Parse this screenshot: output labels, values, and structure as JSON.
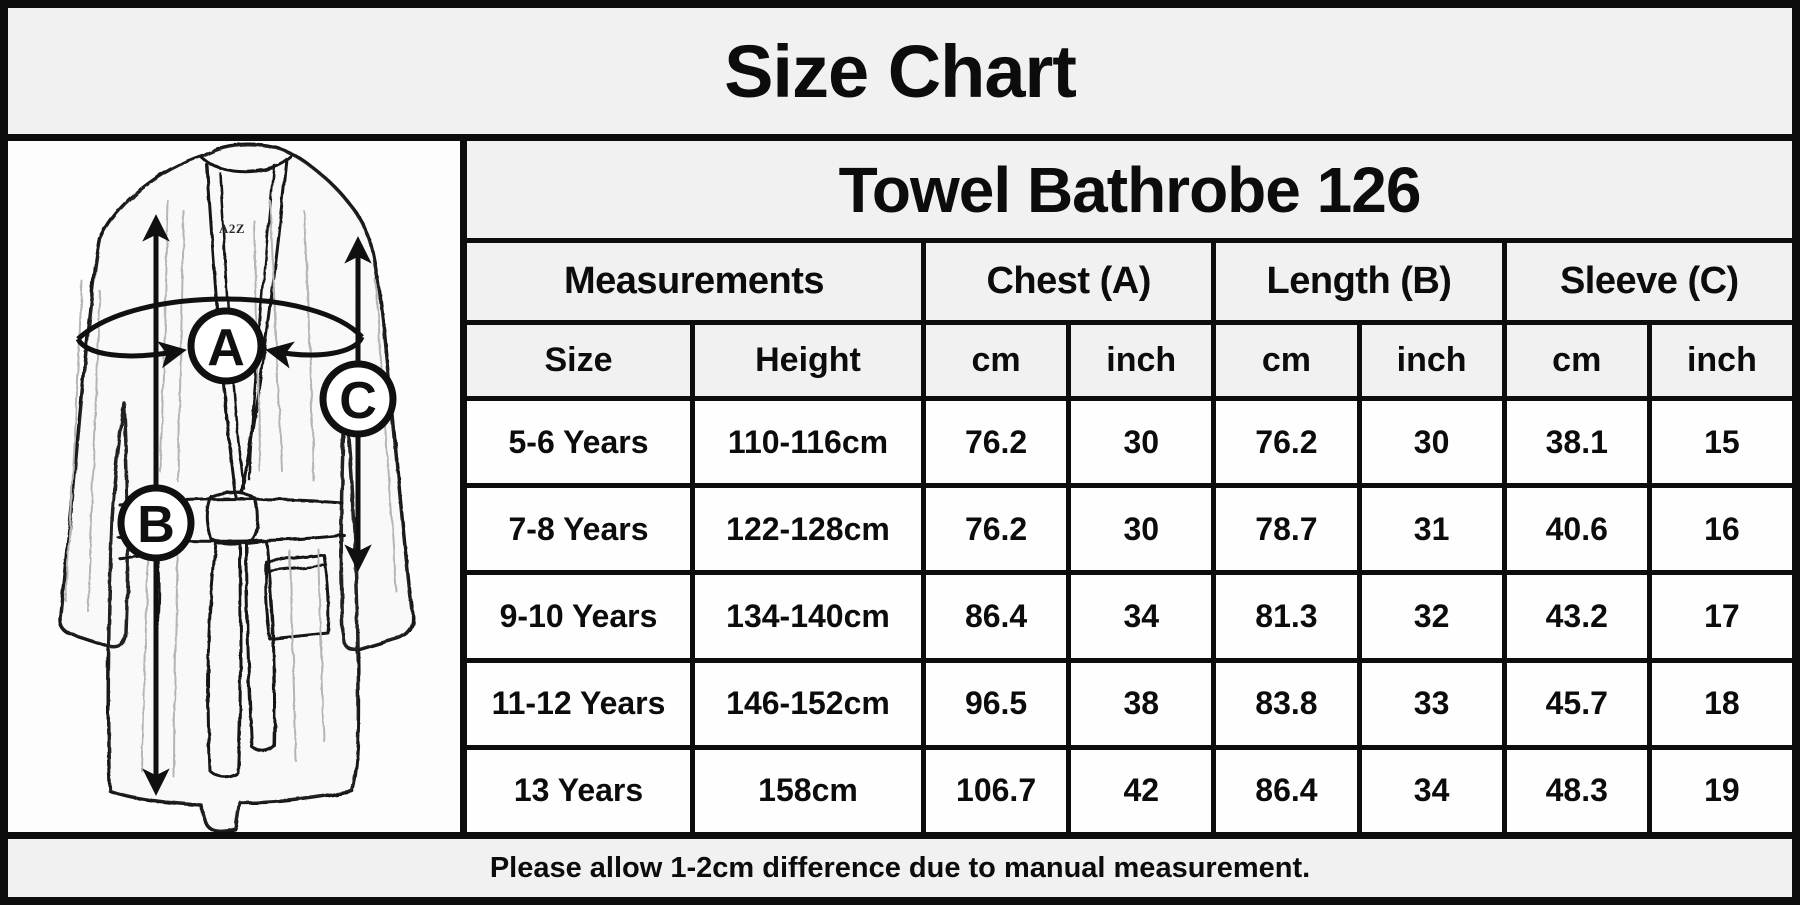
{
  "title": "Size Chart",
  "product_title": "Towel Bathrobe 126",
  "diagram": {
    "brand_label": "A2Z",
    "chest_label": "A",
    "length_label": "B",
    "sleeve_label": "C"
  },
  "chart_data": {
    "type": "table",
    "title": "Size Chart",
    "subtitle": "Towel Bathrobe 126",
    "group_headers": [
      "Measurements",
      "Chest (A)",
      "Length (B)",
      "Sleeve (C)"
    ],
    "sub_headers": [
      "Size",
      "Height",
      "cm",
      "inch",
      "cm",
      "inch",
      "cm",
      "inch"
    ],
    "rows": [
      [
        "5-6 Years",
        "110-116cm",
        "76.2",
        "30",
        "76.2",
        "30",
        "38.1",
        "15"
      ],
      [
        "7-8 Years",
        "122-128cm",
        "76.2",
        "30",
        "78.7",
        "31",
        "40.6",
        "16"
      ],
      [
        "9-10 Years",
        "134-140cm",
        "86.4",
        "34",
        "81.3",
        "32",
        "43.2",
        "17"
      ],
      [
        "11-12 Years",
        "146-152cm",
        "96.5",
        "38",
        "83.8",
        "33",
        "45.7",
        "18"
      ],
      [
        "13 Years",
        "158cm",
        "106.7",
        "42",
        "86.4",
        "34",
        "48.3",
        "19"
      ]
    ],
    "note": "Please allow 1-2cm difference due to manual measurement."
  },
  "colors": {
    "band_background": "#f1f1f1",
    "cell_background": "#fefefe",
    "line": "#0d0d0d",
    "text": "#0c0c0c"
  }
}
